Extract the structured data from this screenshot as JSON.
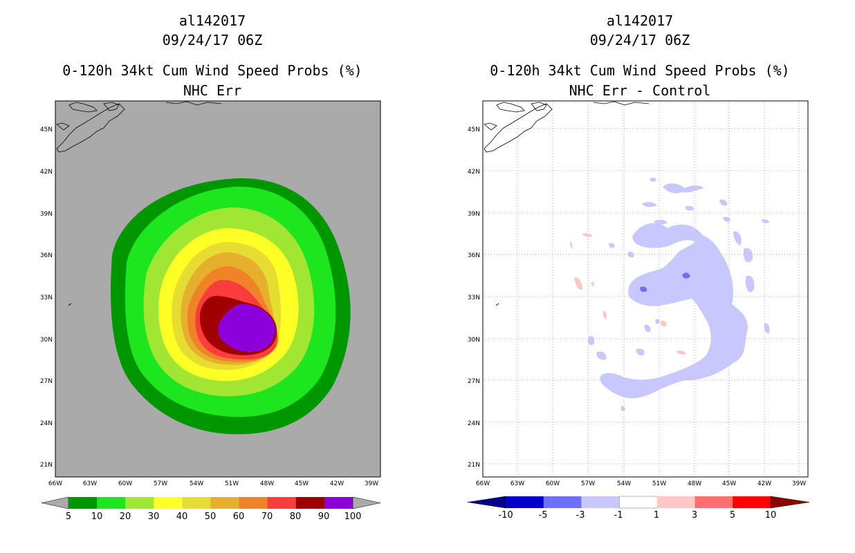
{
  "left_panel": {
    "id_line": "al142017",
    "date_line": "09/24/17 06Z",
    "title_line": "0-120h 34kt Cum Wind Speed Probs (%)",
    "subtitle_line": "NHC Err",
    "colorbar": {
      "labels": [
        "5",
        "10",
        "20",
        "30",
        "40",
        "50",
        "60",
        "70",
        "80",
        "90",
        "100"
      ],
      "colors": [
        "#009600",
        "#1ee61e",
        "#a0e632",
        "#ffff28",
        "#e6dc32",
        "#e6af2d",
        "#f08228",
        "#fa3c3c",
        "#a00000",
        "#8c00dc"
      ],
      "end_color": "#aaaaaa"
    }
  },
  "right_panel": {
    "id_line": "al142017",
    "date_line": "09/24/17 06Z",
    "title_line": "0-120h 34kt Cum Wind Speed Probs (%)",
    "subtitle_line": "NHC Err - Control",
    "colorbar": {
      "labels": [
        "-10",
        "-5",
        "-3",
        "-1",
        "1",
        "3",
        "5",
        "10"
      ],
      "colors": [
        "#0000c8",
        "#6e6eff",
        "#c8c8ff",
        "#ffffff",
        "#ffc8c8",
        "#ff6e6e",
        "#ff0000"
      ],
      "end_left": "#00008c",
      "end_right": "#8c0000"
    }
  },
  "axes": {
    "lon_labels": [
      "66W",
      "63W",
      "60W",
      "57W",
      "54W",
      "51W",
      "48W",
      "45W",
      "42W",
      "39W"
    ],
    "lat_labels": [
      "45N",
      "42N",
      "39N",
      "36N",
      "33N",
      "30N",
      "27N",
      "24N",
      "21N"
    ]
  },
  "colors": {
    "land_bg": "#aaaaaa",
    "light_blue": "#c8c8ff",
    "blue": "#6e6eff",
    "pink": "#ffc8c8"
  }
}
